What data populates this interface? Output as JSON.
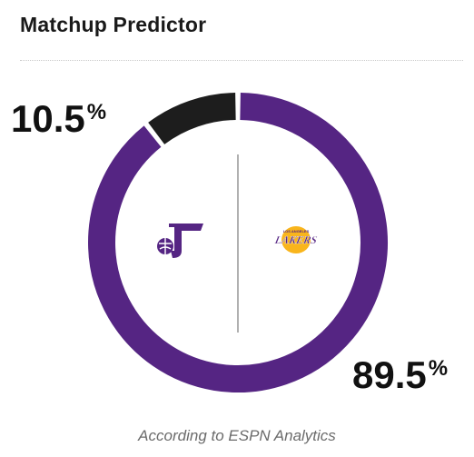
{
  "title": "Matchup Predictor",
  "away": {
    "team_logo_icon": "jazz-logo-icon",
    "percent": "10.5",
    "percent_symbol": "%",
    "probability": 0.105,
    "color": "#1d1d1d"
  },
  "home": {
    "team_logo_icon": "lakers-logo-icon",
    "logo_text": "LAKERS",
    "logo_subtext": "LOS ANGELES",
    "percent": "89.5",
    "percent_symbol": "%",
    "probability": 0.895,
    "color": "#552583"
  },
  "colors": {
    "ring_gap": "#ffffff",
    "center_divider": "#b0b0b0",
    "jazz": "#552583",
    "lakers_gold": "#f9b51c",
    "lakers_purple": "#552583"
  },
  "footer": "According to ESPN Analytics"
}
